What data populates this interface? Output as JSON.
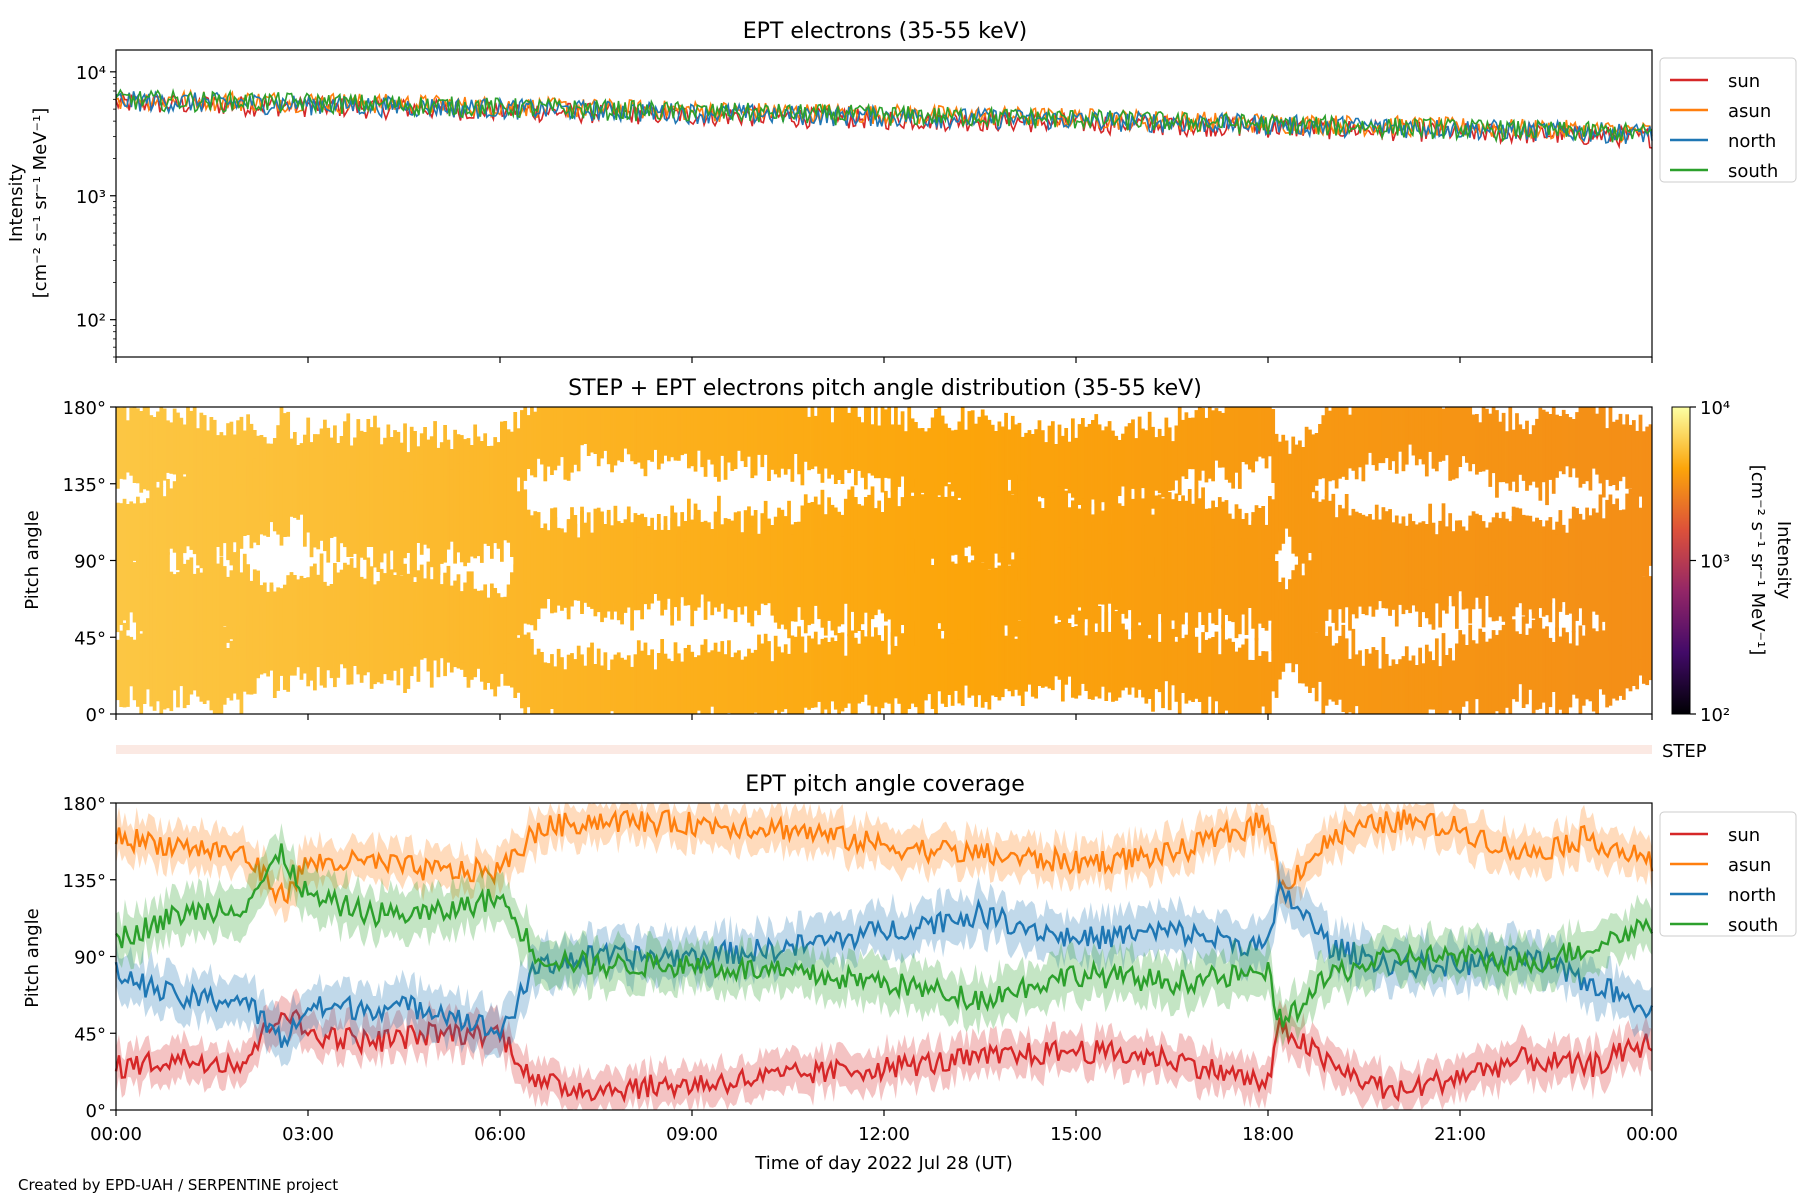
{
  "footer": {
    "credit": "Created by EPD-UAH / SERPENTINE project"
  },
  "colors": {
    "sun": "#d62728",
    "asun": "#ff7f0e",
    "north": "#1f77b4",
    "south": "#2ca02c"
  },
  "chart_data": [
    {
      "type": "line",
      "title": "EPT electrons (35-55 keV)",
      "ylabel": "Intensity",
      "ylabel_units": "[cm⁻² s⁻¹ sr⁻¹ MeV⁻¹]",
      "yscale": "log",
      "ylim": [
        50,
        15000
      ],
      "yticks": [
        {
          "value": 100,
          "label": "10²"
        },
        {
          "value": 1000,
          "label": "10³"
        },
        {
          "value": 10000,
          "label": "10⁴"
        }
      ],
      "xlim_hours": [
        0,
        24
      ],
      "legend_position": "outside-right",
      "series": [
        {
          "name": "sun",
          "color": "#d62728",
          "x_hours": [
            0,
            3,
            6,
            9,
            12,
            15,
            18,
            21,
            24
          ],
          "y": [
            5600,
            5300,
            4900,
            4500,
            4200,
            3900,
            3600,
            3300,
            3000
          ]
        },
        {
          "name": "asun",
          "color": "#ff7f0e",
          "x_hours": [
            0,
            3,
            6,
            9,
            12,
            15,
            18,
            21,
            24
          ],
          "y": [
            6100,
            5800,
            5300,
            4900,
            4600,
            4300,
            3900,
            3600,
            3300
          ]
        },
        {
          "name": "north",
          "color": "#1f77b4",
          "x_hours": [
            0,
            3,
            6,
            9,
            12,
            15,
            18,
            21,
            24
          ],
          "y": [
            5900,
            5500,
            5100,
            4700,
            4400,
            4100,
            3800,
            3500,
            3200
          ]
        },
        {
          "name": "south",
          "color": "#2ca02c",
          "x_hours": [
            0,
            3,
            6,
            9,
            12,
            15,
            18,
            21,
            24
          ],
          "y": [
            6000,
            5700,
            5200,
            4800,
            4500,
            4200,
            3800,
            3500,
            3200
          ]
        }
      ]
    },
    {
      "type": "heatmap",
      "title": "STEP + EPT electrons pitch angle distribution (35-55 keV)",
      "ylabel": "Pitch angle",
      "ylim": [
        0,
        180
      ],
      "yticks": [
        "0°",
        "45°",
        "90°",
        "135°",
        "180°"
      ],
      "xlim_hours": [
        0,
        24
      ],
      "colorbar": {
        "scale": "log",
        "range": [
          100,
          10000
        ],
        "ticks": [
          "10²",
          "10³",
          "10⁴"
        ],
        "label": "Intensity",
        "units": "[cm⁻² s⁻¹ sr⁻¹ MeV⁻¹]",
        "colormap": "inferno"
      },
      "intensity_by_hour": {
        "x_hours": [
          0,
          3,
          6,
          9,
          12,
          15,
          18,
          21,
          24
        ],
        "values": [
          5600,
          5200,
          4800,
          4400,
          4100,
          3800,
          3500,
          3300,
          3100
        ]
      }
    },
    {
      "type": "strip",
      "label": "STEP"
    },
    {
      "type": "line",
      "title": "EPT pitch angle coverage",
      "ylabel": "Pitch angle",
      "ylim": [
        0,
        180
      ],
      "yticks": [
        "0°",
        "45°",
        "90°",
        "135°",
        "180°"
      ],
      "xlabel": "Time of day 2022 Jul 28 (UT)",
      "xlim_hours": [
        0,
        24
      ],
      "xticks": [
        "00:00",
        "03:00",
        "06:00",
        "09:00",
        "12:00",
        "15:00",
        "18:00",
        "21:00",
        "00:00"
      ],
      "legend_position": "outside-right",
      "series": [
        {
          "name": "sun",
          "color": "#d62728",
          "x_hours": [
            0,
            1,
            2,
            2.6,
            3,
            4,
            5,
            6,
            6.6,
            7.5,
            9,
            10.5,
            12,
            13.5,
            15,
            16.5,
            18,
            18.2,
            19,
            20,
            21,
            22,
            23,
            24
          ],
          "y": [
            25,
            30,
            28,
            60,
            45,
            40,
            45,
            45,
            15,
            12,
            15,
            20,
            25,
            30,
            35,
            30,
            15,
            50,
            25,
            10,
            20,
            30,
            25,
            40
          ],
          "spread": 12
        },
        {
          "name": "asun",
          "color": "#ff7f0e",
          "x_hours": [
            0,
            1,
            2,
            2.6,
            3,
            4,
            5,
            6,
            6.6,
            7.5,
            9,
            10.5,
            12,
            13.5,
            15,
            16.5,
            18,
            18.2,
            19,
            20,
            21,
            22,
            23,
            24
          ],
          "y": [
            160,
            155,
            150,
            125,
            145,
            145,
            140,
            140,
            165,
            170,
            168,
            165,
            155,
            150,
            145,
            150,
            170,
            130,
            160,
            170,
            165,
            150,
            160,
            145
          ],
          "spread": 12
        },
        {
          "name": "north",
          "color": "#1f77b4",
          "x_hours": [
            0,
            1,
            2,
            2.6,
            3,
            4,
            5,
            6,
            6.6,
            7.5,
            9,
            10.5,
            12,
            13.5,
            15,
            16.5,
            18,
            18.2,
            19,
            20,
            21,
            22,
            23,
            24
          ],
          "y": [
            80,
            65,
            65,
            40,
            60,
            60,
            60,
            45,
            85,
            90,
            90,
            95,
            105,
            115,
            100,
            105,
            95,
            130,
            95,
            85,
            85,
            90,
            75,
            60
          ],
          "spread": 14
        },
        {
          "name": "south",
          "color": "#2ca02c",
          "x_hours": [
            0,
            1,
            2,
            2.6,
            3,
            4,
            5,
            6,
            6.6,
            7.5,
            9,
            10.5,
            12,
            13.5,
            15,
            16.5,
            18,
            18.2,
            19,
            20,
            21,
            22,
            23,
            24
          ],
          "y": [
            100,
            115,
            120,
            150,
            125,
            115,
            115,
            125,
            90,
            85,
            85,
            80,
            75,
            65,
            80,
            75,
            80,
            50,
            80,
            90,
            90,
            85,
            95,
            110
          ],
          "spread": 14
        }
      ]
    }
  ]
}
